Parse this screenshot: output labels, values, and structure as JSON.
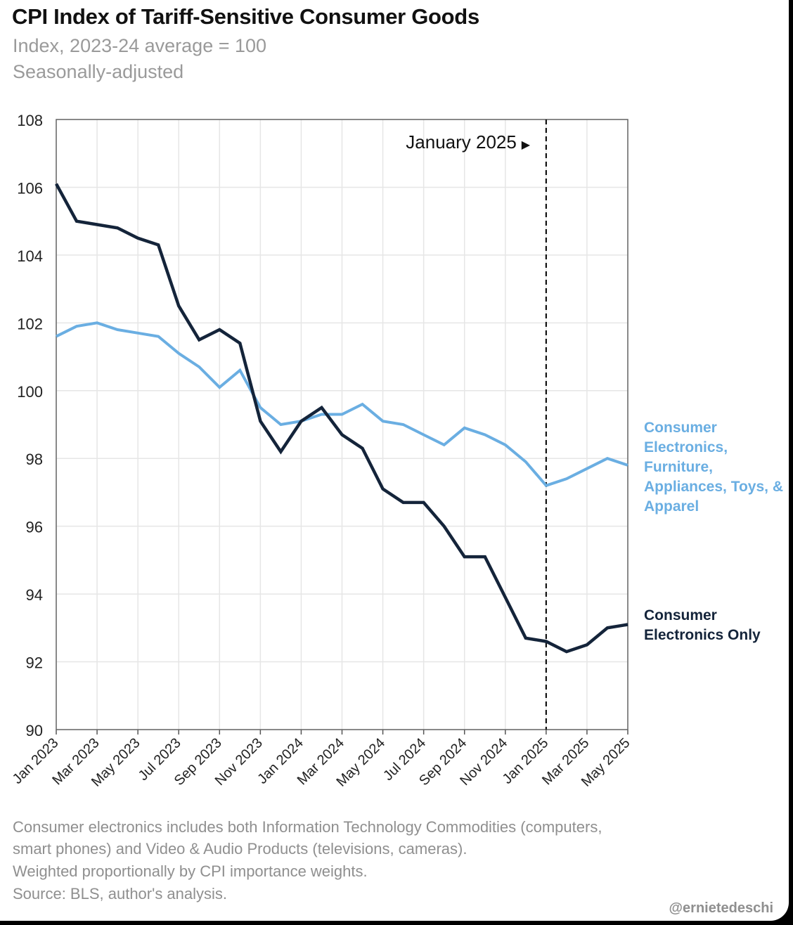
{
  "title": "CPI Index of Tariff-Sensitive Consumer Goods",
  "subtitle": "Index, 2023-24 average = 100",
  "subtitle2": "Seasonally-adjusted",
  "footnotes": [
    "Consumer electronics includes both Information Technology Commodities (computers,",
    "smart phones) and Video & Audio Products (televisions, cameras).",
    "Weighted proportionally by CPI importance weights.",
    "Source: BLS, author's analysis."
  ],
  "handle": "@ernietedeschi",
  "chart_data": {
    "type": "line",
    "title": "CPI Index of Tariff-Sensitive Consumer Goods",
    "subtitle": "Index, 2023-24 average = 100",
    "xlabel": "",
    "ylabel": "",
    "ylim": [
      90,
      108
    ],
    "yticks": [
      90,
      92,
      94,
      96,
      98,
      100,
      102,
      104,
      106,
      108
    ],
    "grid": "vertical and horizontal, light gray",
    "x": [
      "Jan 2023",
      "Feb 2023",
      "Mar 2023",
      "Apr 2023",
      "May 2023",
      "Jun 2023",
      "Jul 2023",
      "Aug 2023",
      "Sep 2023",
      "Oct 2023",
      "Nov 2023",
      "Dec 2023",
      "Jan 2024",
      "Feb 2024",
      "Mar 2024",
      "Apr 2024",
      "May 2024",
      "Jun 2024",
      "Jul 2024",
      "Aug 2024",
      "Sep 2024",
      "Oct 2024",
      "Nov 2024",
      "Dec 2024",
      "Jan 2025",
      "Feb 2025",
      "Mar 2025",
      "Apr 2025",
      "May 2025"
    ],
    "xtick_labels": [
      "Jan 2023",
      "Mar 2023",
      "May 2023",
      "Jul 2023",
      "Sep 2023",
      "Nov 2023",
      "Jan 2024",
      "Mar 2024",
      "May 2024",
      "Jul 2024",
      "Sep 2024",
      "Nov 2024",
      "Jan 2025",
      "Mar 2025",
      "May 2025"
    ],
    "series": [
      {
        "name": "Consumer Electronics, Furniture, Appliances, Toys, & Apparel",
        "label_lines": [
          "Consumer",
          "Electronics,",
          "Furniture,",
          "Appliances, Toys, &",
          "Apparel"
        ],
        "color": "#6aaee2",
        "values": [
          101.6,
          101.9,
          102.0,
          101.8,
          101.7,
          101.6,
          101.1,
          100.7,
          100.1,
          100.6,
          99.5,
          99.0,
          99.1,
          99.3,
          99.3,
          99.6,
          99.1,
          99.0,
          98.7,
          98.4,
          98.9,
          98.7,
          98.4,
          97.9,
          97.2,
          97.4,
          97.7,
          98.0,
          97.8
        ]
      },
      {
        "name": "Consumer Electronics Only",
        "label_lines": [
          "Consumer",
          "Electronics Only"
        ],
        "color": "#14243a",
        "values": [
          106.1,
          105.0,
          104.9,
          104.8,
          104.5,
          104.3,
          102.5,
          101.5,
          101.8,
          101.4,
          99.1,
          98.2,
          99.1,
          99.5,
          98.7,
          98.3,
          97.1,
          96.7,
          96.7,
          96.0,
          95.1,
          95.1,
          93.9,
          92.7,
          92.6,
          92.3,
          92.5,
          93.0,
          93.1
        ]
      }
    ],
    "annotations": [
      {
        "text": "January 2025",
        "marker": "▶",
        "at": "Jan 2025",
        "style": "dashed vertical line"
      }
    ]
  }
}
